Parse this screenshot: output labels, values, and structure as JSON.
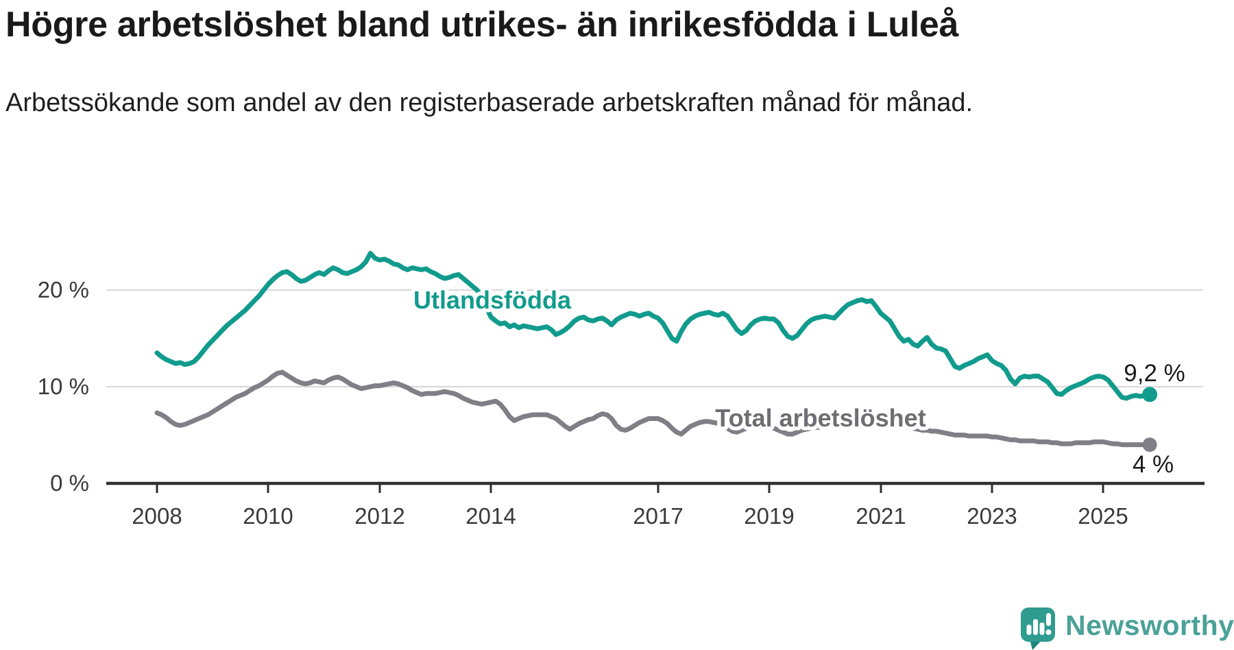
{
  "header": {
    "title": "Högre arbetslöshet bland utrikes- än inrikesfödda i Luleå",
    "subtitle": "Arbetssökande som andel av den registerbaserade arbetskraften månad för månad."
  },
  "branding": {
    "logo_text": "Newsworthy",
    "logo_text_color": "#4aa197",
    "icon_color": "#2f9c90",
    "icon_tail_color": "#1b8478",
    "icon_glyph_color": "#ffffff"
  },
  "chart_data": {
    "type": "line",
    "title": "Högre arbetslöshet bland utrikes- än inrikesfödda i Luleå",
    "subtitle": "Arbetssökande som andel av den registerbaserade arbetskraften månad för månad.",
    "unit": "%",
    "frequency": "monthly",
    "x_start": "2008-01",
    "x_end": "2025-11",
    "grid": "horizontal",
    "grid_color": "#d9d9d9",
    "axis_color": "#2f2f2f",
    "tick_label_color": "#3a3a3a",
    "ylim": [
      0,
      25.5
    ],
    "x_tick_labels": [
      "2008",
      "2010",
      "2012",
      "2014",
      "2017",
      "2019",
      "2021",
      "2023",
      "2025"
    ],
    "y_ticks": [
      {
        "value": 0,
        "label": "0 %"
      },
      {
        "value": 10,
        "label": "10 %"
      },
      {
        "value": 20,
        "label": "20 %"
      }
    ],
    "series": [
      {
        "name": "Utlandsfödda",
        "color": "#119b8d",
        "end_label": "9,2 %",
        "end_value": 9.2,
        "values": [
          13.5,
          13.1,
          12.8,
          12.6,
          12.4,
          12.5,
          12.3,
          12.4,
          12.6,
          13.1,
          13.7,
          14.3,
          14.8,
          15.3,
          15.8,
          16.3,
          16.7,
          17.1,
          17.5,
          17.9,
          18.4,
          18.9,
          19.4,
          20.0,
          20.6,
          21.1,
          21.5,
          21.8,
          21.9,
          21.6,
          21.2,
          20.9,
          21.0,
          21.3,
          21.6,
          21.8,
          21.6,
          22.0,
          22.3,
          22.1,
          21.8,
          21.7,
          21.9,
          22.1,
          22.4,
          22.9,
          23.8,
          23.3,
          23.1,
          23.2,
          23.0,
          22.7,
          22.6,
          22.3,
          22.1,
          22.3,
          22.2,
          22.1,
          22.2,
          21.9,
          21.7,
          21.4,
          21.2,
          21.3,
          21.5,
          21.6,
          21.2,
          20.8,
          20.4,
          20.0,
          19.2,
          18.2,
          17.2,
          16.8,
          16.5,
          16.6,
          16.2,
          16.4,
          16.1,
          16.3,
          16.2,
          16.1,
          16.0,
          16.1,
          16.2,
          15.9,
          15.4,
          15.6,
          15.9,
          16.3,
          16.8,
          17.1,
          17.2,
          16.9,
          16.8,
          17.0,
          17.1,
          16.8,
          16.4,
          16.9,
          17.2,
          17.4,
          17.6,
          17.5,
          17.3,
          17.5,
          17.6,
          17.3,
          17.1,
          16.6,
          15.8,
          15.0,
          14.7,
          15.7,
          16.5,
          17.0,
          17.3,
          17.5,
          17.6,
          17.7,
          17.5,
          17.4,
          17.6,
          17.3,
          16.6,
          15.9,
          15.5,
          15.8,
          16.4,
          16.8,
          17.0,
          17.1,
          17.0,
          17.0,
          16.6,
          15.8,
          15.2,
          15.0,
          15.3,
          15.9,
          16.5,
          16.9,
          17.1,
          17.2,
          17.3,
          17.2,
          17.1,
          17.6,
          18.1,
          18.5,
          18.7,
          18.9,
          19.0,
          18.8,
          18.9,
          18.3,
          17.6,
          17.2,
          16.8,
          16.0,
          15.2,
          14.7,
          14.9,
          14.4,
          14.2,
          14.7,
          15.1,
          14.4,
          14.0,
          13.9,
          13.7,
          12.9,
          12.1,
          11.9,
          12.2,
          12.4,
          12.6,
          12.9,
          13.1,
          13.3,
          12.7,
          12.4,
          12.2,
          11.7,
          10.8,
          10.3,
          10.9,
          11.1,
          11.0,
          11.1,
          11.1,
          10.8,
          10.5,
          9.9,
          9.3,
          9.2,
          9.6,
          9.9,
          10.1,
          10.3,
          10.5,
          10.8,
          11.0,
          11.1,
          11.0,
          10.7,
          10.1,
          9.5,
          8.9,
          8.8,
          9.0,
          9.1,
          9.0,
          9.1,
          9.2
        ]
      },
      {
        "name": "Total arbetslöshet",
        "color": "#807f85",
        "label_color": "#6e6d73",
        "end_label": "4 %",
        "end_value": 4.0,
        "values": [
          7.3,
          7.1,
          6.8,
          6.4,
          6.1,
          6.0,
          6.1,
          6.3,
          6.5,
          6.7,
          6.9,
          7.1,
          7.4,
          7.7,
          8.0,
          8.3,
          8.6,
          8.9,
          9.1,
          9.3,
          9.6,
          9.9,
          10.1,
          10.4,
          10.7,
          11.1,
          11.4,
          11.5,
          11.2,
          10.9,
          10.6,
          10.4,
          10.3,
          10.4,
          10.6,
          10.5,
          10.4,
          10.7,
          10.9,
          11.0,
          10.8,
          10.5,
          10.2,
          10.0,
          9.8,
          9.9,
          10.0,
          10.1,
          10.1,
          10.2,
          10.3,
          10.4,
          10.3,
          10.1,
          9.9,
          9.6,
          9.4,
          9.2,
          9.3,
          9.3,
          9.3,
          9.4,
          9.5,
          9.4,
          9.3,
          9.1,
          8.8,
          8.6,
          8.4,
          8.3,
          8.2,
          8.3,
          8.4,
          8.5,
          8.2,
          7.6,
          6.9,
          6.5,
          6.7,
          6.9,
          7.0,
          7.1,
          7.1,
          7.1,
          7.1,
          6.9,
          6.7,
          6.3,
          5.9,
          5.6,
          5.9,
          6.2,
          6.4,
          6.6,
          6.7,
          7.0,
          7.2,
          7.1,
          6.7,
          6.0,
          5.6,
          5.5,
          5.7,
          6.0,
          6.3,
          6.5,
          6.7,
          6.7,
          6.7,
          6.5,
          6.2,
          5.7,
          5.3,
          5.1,
          5.5,
          5.9,
          6.1,
          6.3,
          6.4,
          6.4,
          6.3,
          6.2,
          6.0,
          5.7,
          5.4,
          5.3,
          5.5,
          5.7,
          5.8,
          5.9,
          5.9,
          5.8,
          5.8,
          5.7,
          5.5,
          5.3,
          5.1,
          5.1,
          5.3,
          5.5,
          5.6,
          5.7,
          5.8,
          5.8,
          5.9,
          6.0,
          6.3,
          6.9,
          7.2,
          7.3,
          7.2,
          7.1,
          7.0,
          6.9,
          6.8,
          6.8,
          6.7,
          6.6,
          6.4,
          6.2,
          6.0,
          5.9,
          5.8,
          5.7,
          5.6,
          5.5,
          5.5,
          5.4,
          5.4,
          5.3,
          5.2,
          5.1,
          5.0,
          5.0,
          5.0,
          4.9,
          4.9,
          4.9,
          4.9,
          4.9,
          4.8,
          4.8,
          4.7,
          4.6,
          4.5,
          4.5,
          4.4,
          4.4,
          4.4,
          4.4,
          4.3,
          4.3,
          4.3,
          4.2,
          4.2,
          4.1,
          4.1,
          4.1,
          4.2,
          4.2,
          4.2,
          4.2,
          4.3,
          4.3,
          4.3,
          4.2,
          4.1,
          4.1,
          4.0,
          4.0,
          4.0,
          4.0,
          4.0,
          4.0,
          4.0
        ]
      }
    ]
  }
}
